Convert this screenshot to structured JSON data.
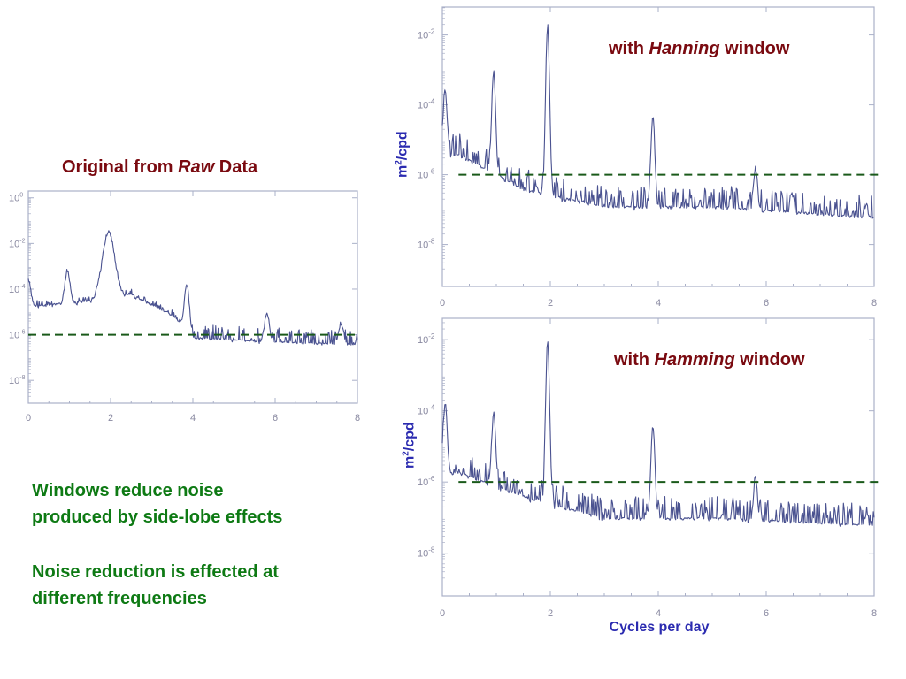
{
  "titles": {
    "raw_prefix": "Original from ",
    "raw_emph": "Raw",
    "raw_suffix": " Data",
    "hanning_prefix": "with ",
    "hanning_emph": "Hanning",
    "hanning_suffix": " window",
    "hamming_prefix": "with ",
    "hamming_emph": "Hamming",
    "hamming_suffix": " window"
  },
  "ylabel_top": {
    "base": "m",
    "sup": "2",
    "rest": "/cpd"
  },
  "ylabel_bottom": {
    "base": "m",
    "sup": "2",
    "rest": "/cpd"
  },
  "xlabel": "Cycles per day",
  "notes": {
    "note1_line1": "Windows reduce noise",
    "note1_line2": "produced by side-lobe effects",
    "note2_line1": "Noise reduction is effected at",
    "note2_line2": "different frequencies"
  },
  "colors": {
    "series": "#4a5290",
    "threshold": "#1a5a1a",
    "frame": "#aab0c8",
    "title": "#7a0a10",
    "axis_label": "#2b2bb0",
    "note": "#0e7a14"
  },
  "chart_data": [
    {
      "type": "line",
      "name": "raw",
      "title": "Original from Raw Data",
      "x_ticks": [
        0,
        2,
        4,
        6,
        8
      ],
      "y_ticks_exp": [
        0,
        -2,
        -4,
        -6,
        -8
      ],
      "xlim": [
        0,
        8
      ],
      "ylim_log10": [
        -9.0,
        0.3
      ],
      "threshold_log10": -6,
      "peaks": [
        {
          "x": 0.0,
          "log10": -3.6
        },
        {
          "x": 0.95,
          "log10": -3.2
        },
        {
          "x": 1.95,
          "log10": -1.5
        },
        {
          "x": 3.85,
          "log10": -3.8
        },
        {
          "x": 5.8,
          "log10": -5.1
        },
        {
          "x": 7.6,
          "log10": -5.5
        }
      ],
      "noise_floor": [
        {
          "x": 0.3,
          "log10": -4.8
        },
        {
          "x": 1.5,
          "log10": -4.6
        },
        {
          "x": 2.5,
          "log10": -4.3
        },
        {
          "x": 3.5,
          "log10": -5.2
        },
        {
          "x": 4.0,
          "log10": -6.2
        },
        {
          "x": 6.0,
          "log10": -6.4
        },
        {
          "x": 8.0,
          "log10": -6.5
        }
      ]
    },
    {
      "type": "line",
      "name": "hanning",
      "title": "with Hanning window",
      "ylabel": "m2/cpd",
      "x_ticks": [
        0,
        2,
        4,
        6,
        8
      ],
      "y_ticks_exp": [
        -2,
        -4,
        -6,
        -8
      ],
      "xlim": [
        0,
        8
      ],
      "ylim_log10": [
        -9.2,
        -1.2
      ],
      "threshold_log10": -6,
      "peaks": [
        {
          "x": 0.05,
          "log10": -3.6
        },
        {
          "x": 0.95,
          "log10": -3.1
        },
        {
          "x": 1.95,
          "log10": -1.7
        },
        {
          "x": 3.9,
          "log10": -4.3
        },
        {
          "x": 5.8,
          "log10": -5.8
        },
        {
          "x": 7.85,
          "log10": -6.9
        }
      ],
      "noise_floor": [
        {
          "x": 0.3,
          "log10": -5.5
        },
        {
          "x": 1.5,
          "log10": -6.5
        },
        {
          "x": 3.0,
          "log10": -7.0
        },
        {
          "x": 5.0,
          "log10": -7.0
        },
        {
          "x": 8.0,
          "log10": -7.3
        }
      ]
    },
    {
      "type": "line",
      "name": "hamming",
      "title": "with Hamming window",
      "ylabel": "m2/cpd",
      "xlabel": "Cycles per day",
      "x_ticks": [
        0,
        2,
        4,
        6,
        8
      ],
      "y_ticks_exp": [
        -2,
        -4,
        -6,
        -8
      ],
      "xlim": [
        0,
        8
      ],
      "ylim_log10": [
        -9.2,
        -1.4
      ],
      "threshold_log10": -6,
      "peaks": [
        {
          "x": 0.05,
          "log10": -3.8
        },
        {
          "x": 0.95,
          "log10": -4.1
        },
        {
          "x": 1.95,
          "log10": -2.0
        },
        {
          "x": 3.9,
          "log10": -4.4
        },
        {
          "x": 5.8,
          "log10": -5.9
        },
        {
          "x": 7.85,
          "log10": -6.9
        }
      ],
      "noise_floor": [
        {
          "x": 0.3,
          "log10": -5.8
        },
        {
          "x": 1.5,
          "log10": -6.5
        },
        {
          "x": 3.0,
          "log10": -7.1
        },
        {
          "x": 5.0,
          "log10": -7.1
        },
        {
          "x": 8.0,
          "log10": -7.3
        }
      ]
    }
  ]
}
